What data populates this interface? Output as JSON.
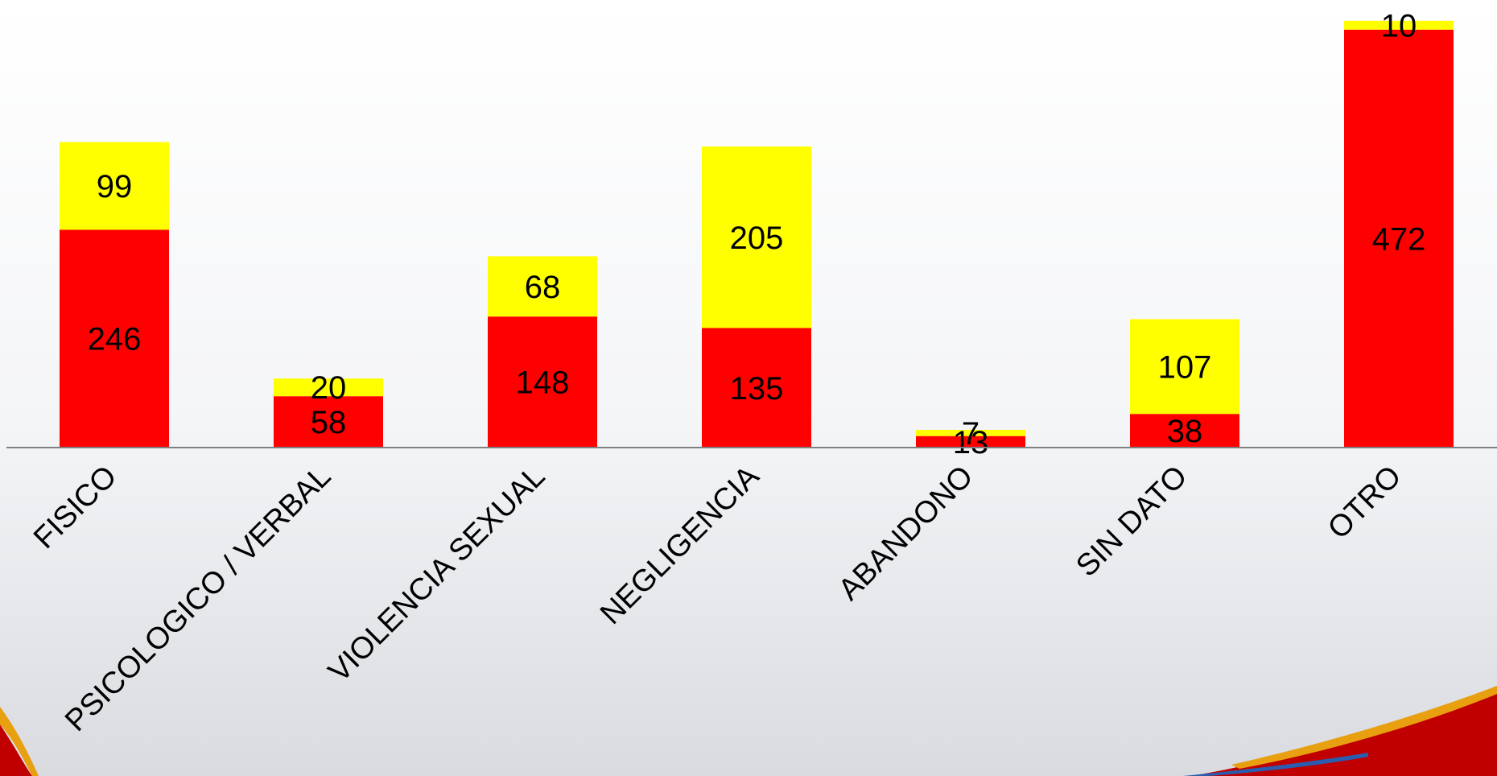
{
  "colors": {
    "background": "#ffffff",
    "series_red": "#ff0000",
    "series_yellow": "#ffff00",
    "axis": "#808080",
    "swoosh_red": "#c00000",
    "swoosh_gold": "#e8a010",
    "swoosh_blue": "#2a5db0"
  },
  "chart_data": {
    "type": "bar",
    "stacked": true,
    "categories": [
      "FISICO",
      "PSICOLOGICO / VERBAL",
      "VIOLENCIA SEXUAL",
      "NEGLIGENCIA",
      "ABANDONO",
      "SIN DATO",
      "OTRO"
    ],
    "series": [
      {
        "color": "#ff0000",
        "values": [
          246,
          58,
          148,
          135,
          13,
          38,
          472
        ]
      },
      {
        "color": "#ffff00",
        "values": [
          99,
          20,
          68,
          205,
          7,
          107,
          10
        ]
      }
    ],
    "title": "",
    "xlabel": "",
    "ylabel": "",
    "ylim": [
      0,
      500
    ],
    "grid": false,
    "legend": "none",
    "data_labels": true
  }
}
